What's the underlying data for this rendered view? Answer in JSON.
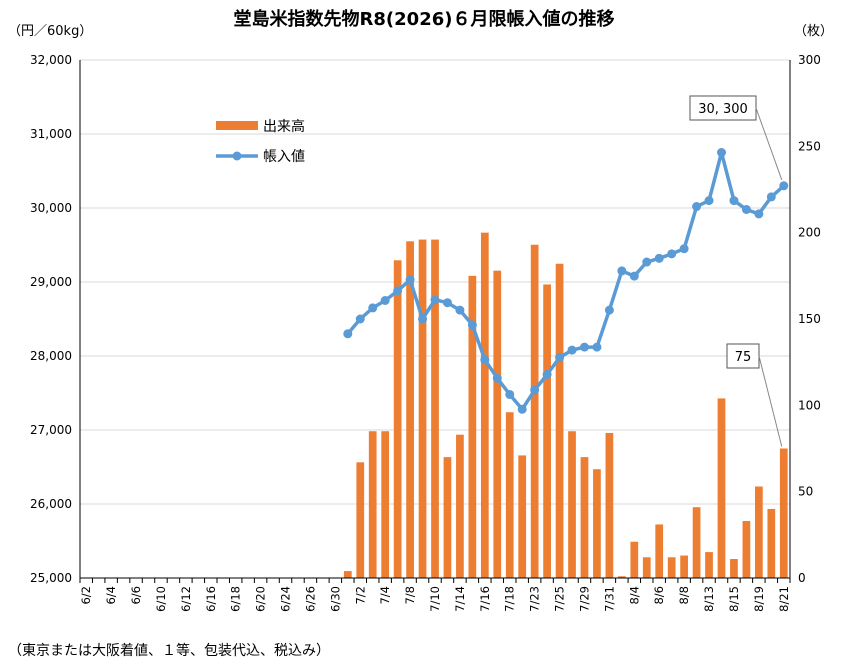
{
  "chart_data": {
    "type": "bar+line",
    "title": "堂島米指数先物R8(2026)６月限帳入値の推移",
    "y_left_unit": "（円／60kg）",
    "y_right_unit": "（枚）",
    "footnote": "（東京または大阪着値、１等、包装代込、税込み）",
    "y_left_range": [
      25000,
      32000
    ],
    "y_left_ticks": [
      "25,000",
      "26,000",
      "27,000",
      "28,000",
      "29,000",
      "30,000",
      "31,000",
      "32,000"
    ],
    "y_right_range": [
      0,
      300
    ],
    "y_right_ticks": [
      "0",
      "50",
      "100",
      "150",
      "200",
      "250",
      "300"
    ],
    "x_tick_labels": [
      "6/2",
      "6/4",
      "6/6",
      "6/10",
      "6/12",
      "6/16",
      "6/18",
      "6/20",
      "6/24",
      "6/26",
      "6/30",
      "7/2",
      "7/4",
      "7/8",
      "7/10",
      "7/14",
      "7/16",
      "7/18",
      "7/23",
      "7/25",
      "7/29",
      "7/31",
      "8/4",
      "8/6",
      "8/8",
      "8/13",
      "8/15",
      "8/19",
      "8/21"
    ],
    "x_tick_every": 2,
    "grid": "horizontal",
    "legend_position": "upper-left",
    "series": [
      {
        "name": "出来高",
        "type": "bar",
        "axis": "right",
        "color": "#ed7d31",
        "values": [
          0,
          0,
          0,
          0,
          0,
          0,
          0,
          0,
          0,
          0,
          0,
          0,
          0,
          0,
          0,
          0,
          0,
          0,
          0,
          0,
          0,
          4,
          67,
          85,
          85,
          184,
          195,
          196,
          196,
          70,
          83,
          175,
          200,
          178,
          96,
          71,
          193,
          170,
          182,
          85,
          70,
          63,
          84,
          1,
          21,
          12,
          31,
          12,
          13,
          41,
          15,
          104,
          11,
          33,
          53,
          40,
          75
        ]
      },
      {
        "name": "帳入値",
        "type": "line",
        "axis": "left",
        "color": "#5b9bd5",
        "values": [
          null,
          null,
          null,
          null,
          null,
          null,
          null,
          null,
          null,
          null,
          null,
          null,
          null,
          null,
          null,
          null,
          null,
          null,
          null,
          null,
          null,
          28300,
          28500,
          28650,
          28750,
          28880,
          29030,
          28500,
          28760,
          28720,
          28620,
          28420,
          27950,
          27700,
          27480,
          27280,
          27540,
          27750,
          27980,
          28080,
          28120,
          28120,
          28620,
          29150,
          29080,
          29270,
          29320,
          29380,
          29450,
          30020,
          30100,
          30750,
          30100,
          29980,
          29920,
          30150,
          30300
        ]
      }
    ],
    "annotations": [
      {
        "text": "30, 300",
        "series": "帳入値",
        "index": 56
      },
      {
        "text": "75",
        "series": "出来高",
        "index": 56
      }
    ]
  }
}
